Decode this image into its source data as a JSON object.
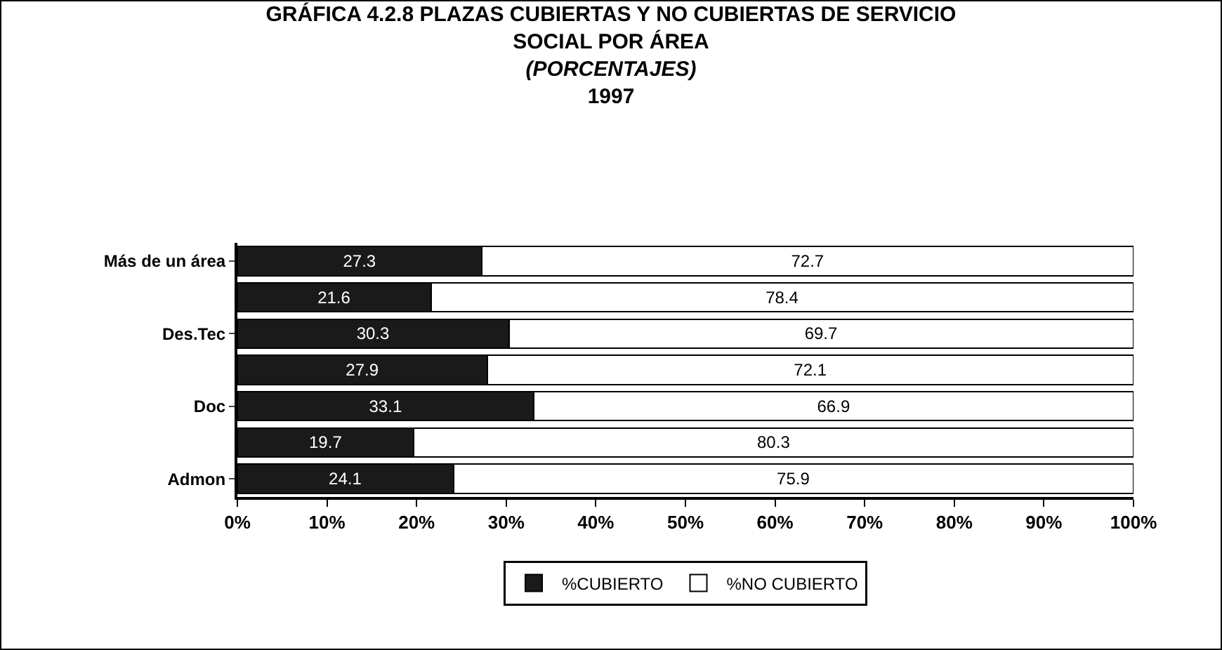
{
  "chart_data": {
    "type": "bar",
    "orientation": "horizontal",
    "stacked": true,
    "title": "GRÁFICA 4.2.8 PLAZAS CUBIERTAS Y NO CUBIERTAS DE SERVICIO SOCIAL POR ÁREA",
    "subtitle": "(PORCENTAJES)",
    "annotations": [
      "1997"
    ],
    "categories": [
      "Más de un área",
      null,
      "Des.Tec",
      null,
      "Doc",
      null,
      "Admon"
    ],
    "series": [
      {
        "name": "%CUBIERTO",
        "color": "#1a1a1a",
        "values": [
          27.3,
          21.6,
          30.3,
          27.9,
          33.1,
          19.7,
          24.1
        ]
      },
      {
        "name": "%NO CUBIERTO",
        "color": "#ffffff",
        "values": [
          72.7,
          78.4,
          69.7,
          72.1,
          66.9,
          80.3,
          75.9
        ]
      }
    ],
    "data_labels": true,
    "xlim": [
      0,
      100
    ],
    "xticks": [
      {
        "value": 0,
        "label": "0%"
      },
      {
        "value": 10,
        "label": "10%"
      },
      {
        "value": 20,
        "label": "20%"
      },
      {
        "value": 30,
        "label": "30%"
      },
      {
        "value": 40,
        "label": "40%"
      },
      {
        "value": 50,
        "label": "50%"
      },
      {
        "value": 60,
        "label": "60%"
      },
      {
        "value": 70,
        "label": "70%"
      },
      {
        "value": 80,
        "label": "80%"
      },
      {
        "value": 90,
        "label": "90%"
      },
      {
        "value": 100,
        "label": "100%"
      }
    ],
    "grid": false,
    "legend": "bottom"
  }
}
